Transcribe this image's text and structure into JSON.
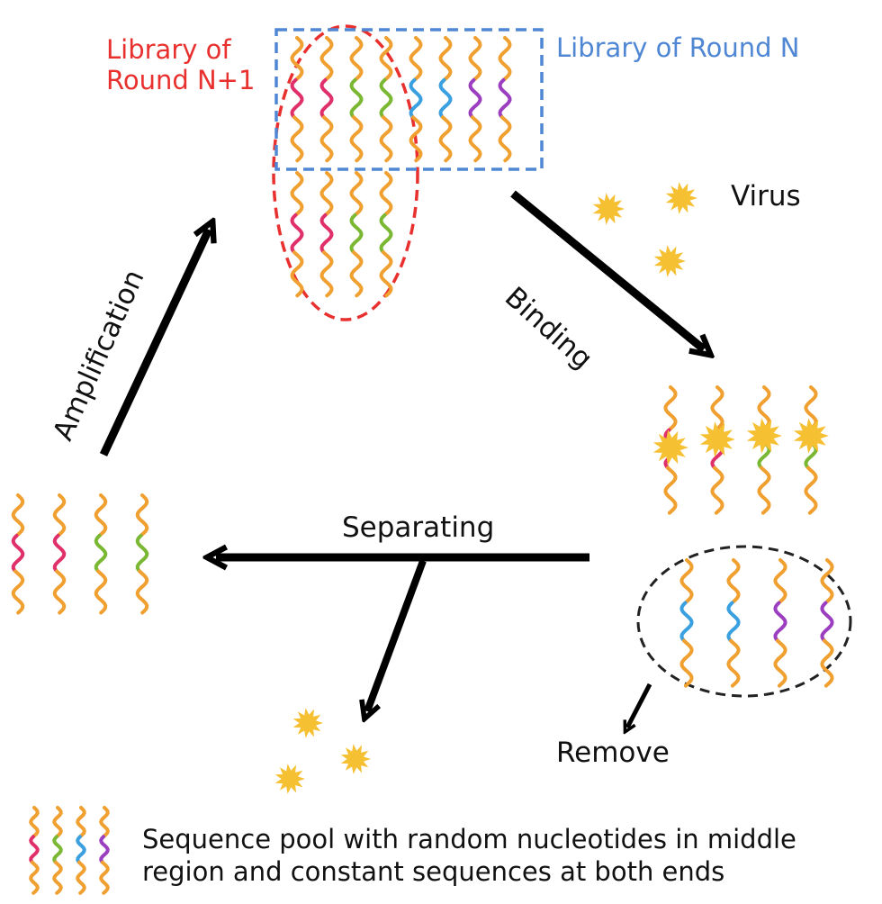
{
  "labels": {
    "library_next_line1": "Library of",
    "library_next_line2": "Round N+1",
    "library_current": "Library of Round N",
    "virus": "Virus",
    "binding": "Binding",
    "amplification": "Amplification",
    "separating": "Separating",
    "remove": "Remove",
    "legend_line1": "Sequence pool  with random nucleotides in middle",
    "legend_line2": "region and constant sequences at both ends"
  },
  "colors": {
    "end_orange": "#f0a030",
    "middle_red": "#e0306a",
    "middle_green": "#7ab833",
    "middle_blue": "#3aa0e0",
    "middle_purple": "#9b3fc0",
    "virus_yellow": "#f6c033",
    "red_dashed": "#e8312f",
    "blue_dashed": "#4f87d4",
    "black_dashed": "#222222",
    "arrow": "#000000"
  },
  "strands": {
    "library_row1": [
      "middle_red",
      "middle_red",
      "middle_green",
      "middle_green",
      "middle_blue",
      "middle_blue",
      "middle_purple",
      "middle_purple"
    ],
    "library_row2": [
      "middle_red",
      "middle_red",
      "middle_green",
      "middle_green"
    ],
    "bound": [
      "middle_red",
      "middle_red",
      "middle_green",
      "middle_green"
    ],
    "removed": [
      "middle_blue",
      "middle_blue",
      "middle_purple",
      "middle_purple"
    ],
    "separated": [
      "middle_red",
      "middle_red",
      "middle_green",
      "middle_green"
    ],
    "legend": [
      "middle_red",
      "middle_green",
      "middle_blue",
      "middle_purple"
    ]
  }
}
